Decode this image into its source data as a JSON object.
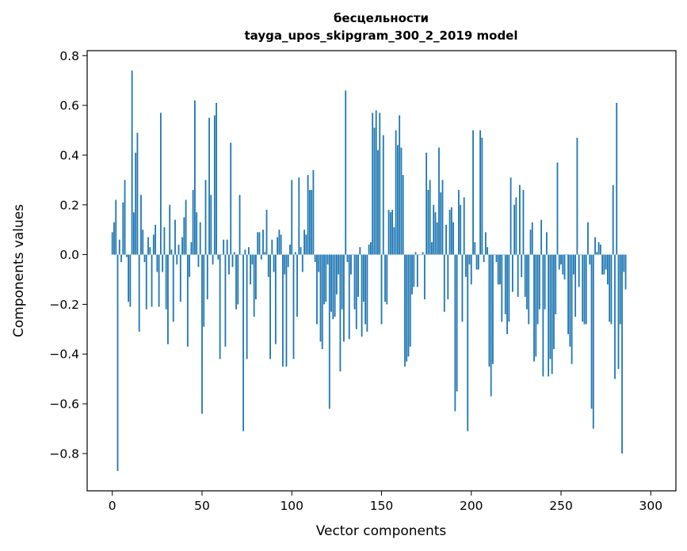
{
  "chart_data": {
    "type": "bar",
    "title": "бесцельности",
    "subtitle": "tayga_upos_skipgram_300_2_2019 model",
    "xlabel": "Vector components",
    "ylabel": "Components values",
    "xlim": [
      -14,
      314
    ],
    "ylim": [
      -0.95,
      0.82
    ],
    "xticks": [
      0,
      50,
      100,
      150,
      200,
      250,
      300
    ],
    "xtick_labels": [
      "0",
      "50",
      "100",
      "150",
      "200",
      "250",
      "300"
    ],
    "yticks": [
      -0.8,
      -0.6,
      -0.4,
      -0.2,
      0.0,
      0.2,
      0.4,
      0.6,
      0.8
    ],
    "ytick_labels": [
      "−0.8",
      "−0.6",
      "−0.4",
      "−0.2",
      "0.0",
      "0.2",
      "0.4",
      "0.6",
      "0.8"
    ],
    "grid": false,
    "bar_color": "#1f77b4",
    "values": [
      0.09,
      0.13,
      0.22,
      -0.87,
      0.06,
      -0.03,
      0.21,
      0.3,
      -0.01,
      -0.19,
      -0.21,
      0.74,
      0.17,
      0.41,
      0.49,
      -0.31,
      0.24,
      0.1,
      -0.03,
      -0.22,
      0.07,
      0.03,
      -0.21,
      0.08,
      0.12,
      -0.07,
      -0.21,
      0.57,
      -0.07,
      0.11,
      -0.22,
      -0.36,
      0.2,
      0.02,
      -0.27,
      0.14,
      -0.04,
      0.04,
      -0.19,
      0.07,
      0.15,
      0.22,
      -0.37,
      -0.09,
      0.05,
      0.26,
      0.62,
      0.17,
      -0.05,
      0.13,
      -0.64,
      -0.29,
      0.3,
      -0.18,
      0.55,
      0.24,
      -0.04,
      0.56,
      0.61,
      -0.02,
      -0.42,
      0.0,
      0.06,
      -0.37,
      0.06,
      -0.08,
      0.45,
      -0.05,
      0.01,
      -0.22,
      -0.2,
      0.24,
      0.0,
      -0.71,
      0.02,
      -0.42,
      0.03,
      -0.12,
      -0.04,
      -0.25,
      -0.18,
      0.09,
      0.09,
      -0.02,
      0.1,
      0.01,
      0.18,
      -0.09,
      -0.42,
      0.06,
      -0.07,
      -0.36,
      0.07,
      0.1,
      0.08,
      -0.45,
      -0.08,
      -0.45,
      -0.05,
      0.04,
      0.3,
      -0.42,
      0.01,
      -0.25,
      0.31,
      0.03,
      -0.07,
      0.1,
      0.08,
      0.32,
      0.26,
      0.26,
      0.34,
      -0.03,
      -0.28,
      -0.07,
      -0.35,
      -0.38,
      -0.2,
      -0.19,
      -0.04,
      -0.62,
      -0.23,
      -0.26,
      -0.25,
      -0.16,
      -0.08,
      -0.47,
      -0.22,
      -0.35,
      0.66,
      -0.03,
      -0.34,
      -0.08,
      0.0,
      -0.22,
      -0.3,
      -0.17,
      0.03,
      -0.33,
      -0.19,
      -0.28,
      -0.31,
      0.04,
      0.05,
      0.57,
      0.51,
      0.58,
      0.42,
      0.57,
      -0.28,
      0.48,
      -0.19,
      -0.2,
      0.18,
      0.17,
      0.18,
      0.11,
      0.5,
      0.44,
      0.56,
      0.43,
      0.32,
      -0.45,
      -0.43,
      -0.41,
      -0.37,
      -0.16,
      -0.13,
      0.01,
      -0.13,
      0.0,
      0.0,
      0.01,
      -0.18,
      0.41,
      0.26,
      0.3,
      0.05,
      0.2,
      0.17,
      0.13,
      0.43,
      0.25,
      0.3,
      -0.23,
      0.12,
      -0.18,
      0.18,
      0.19,
      0.13,
      -0.63,
      -0.55,
      0.26,
      0.2,
      -0.27,
      0.23,
      -0.09,
      -0.71,
      -0.04,
      -0.12,
      0.5,
      0.05,
      -0.06,
      -0.06,
      0.5,
      0.47,
      -0.03,
      0.09,
      0.03,
      -0.45,
      -0.57,
      -0.44,
      0.0,
      -0.03,
      -0.12,
      -0.12,
      -0.27,
      0.0,
      -0.24,
      -0.32,
      -0.27,
      0.31,
      -0.15,
      0.2,
      0.23,
      -0.17,
      0.28,
      -0.09,
      0.26,
      -0.17,
      -0.22,
      -0.28,
      0.1,
      0.13,
      -0.43,
      -0.41,
      -0.28,
      -0.22,
      0.14,
      -0.49,
      -0.22,
      0.09,
      -0.49,
      -0.42,
      -0.48,
      -0.38,
      -0.24,
      0.37,
      -0.06,
      -0.04,
      -0.08,
      -0.1,
      0.0,
      -0.32,
      -0.37,
      -0.44,
      -0.08,
      -0.25,
      0.47,
      -0.13,
      0.0,
      -0.27,
      -0.28,
      -0.28,
      0.13,
      -0.04,
      -0.62,
      -0.7,
      0.07,
      0.01,
      0.05,
      0.04,
      -0.08,
      -0.08,
      -0.06,
      -0.12,
      -0.27,
      -0.28,
      0.28,
      -0.5,
      0.61,
      -0.46,
      -0.28,
      -0.8,
      -0.07,
      -0.14
    ]
  }
}
